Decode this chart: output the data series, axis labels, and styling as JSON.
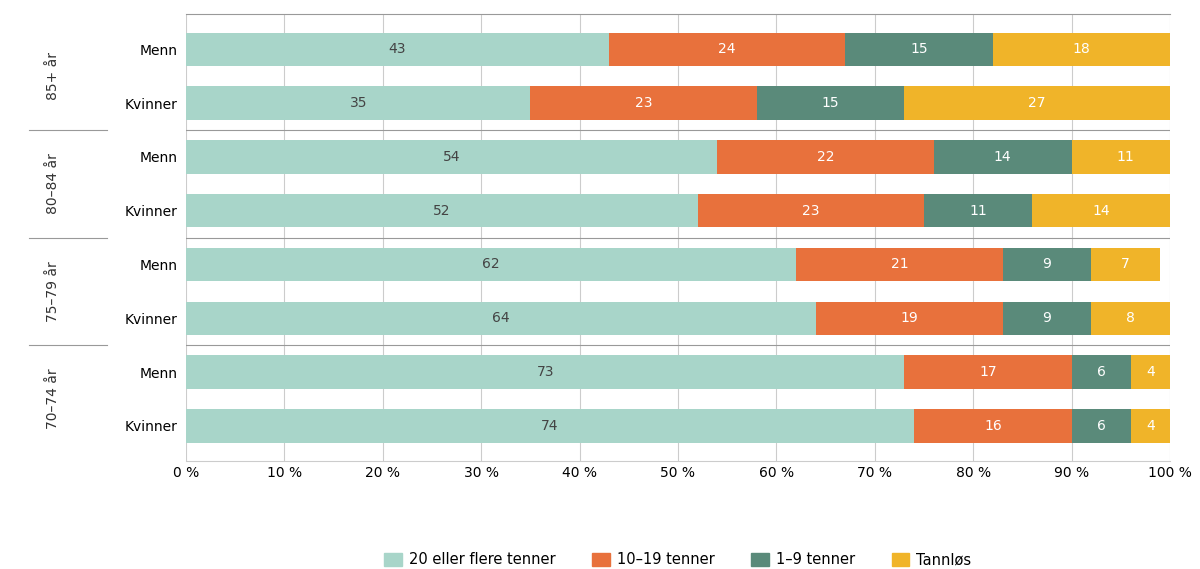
{
  "categories": [
    [
      "85+ år",
      "Menn"
    ],
    [
      "85+ år",
      "Kvinner"
    ],
    [
      "80–84 år",
      "Menn"
    ],
    [
      "80–84 år",
      "Kvinner"
    ],
    [
      "75–79 år",
      "Menn"
    ],
    [
      "75–79 år",
      "Kvinner"
    ],
    [
      "70–74 år",
      "Menn"
    ],
    [
      "70–74 år",
      "Kvinner"
    ]
  ],
  "data": [
    [
      43,
      24,
      15,
      18
    ],
    [
      35,
      23,
      15,
      27
    ],
    [
      54,
      22,
      14,
      11
    ],
    [
      52,
      23,
      11,
      14
    ],
    [
      62,
      21,
      9,
      7
    ],
    [
      64,
      19,
      9,
      8
    ],
    [
      73,
      17,
      6,
      4
    ],
    [
      74,
      16,
      6,
      4
    ]
  ],
  "colors": [
    "#a8d5c9",
    "#e8713c",
    "#5a8a7a",
    "#f0b429"
  ],
  "legend_labels": [
    "20 eller flere tenner",
    "10–19 tenner",
    "1–9 tenner",
    "Tannløs"
  ],
  "age_groups": [
    "85+ år",
    "80–84 år",
    "75–79 år",
    "70–74 år"
  ],
  "age_group_rows": [
    [
      0,
      1
    ],
    [
      2,
      3
    ],
    [
      4,
      5
    ],
    [
      6,
      7
    ]
  ],
  "xlim": [
    0,
    100
  ],
  "xticks": [
    0,
    10,
    20,
    30,
    40,
    50,
    60,
    70,
    80,
    90,
    100
  ],
  "xtick_labels": [
    "0 %",
    "10 %",
    "20 %",
    "30 %",
    "40 %",
    "50 %",
    "60 %",
    "70 %",
    "80 %",
    "90 %",
    "100 %"
  ],
  "background_color": "#ffffff",
  "bar_height": 0.62,
  "text_color_dark": "#444444",
  "text_color_light": "#ffffff",
  "grid_color": "#cccccc",
  "separator_color": "#999999",
  "label_fontsize": 10,
  "tick_fontsize": 10,
  "age_label_fontsize": 10,
  "legend_fontsize": 10.5
}
